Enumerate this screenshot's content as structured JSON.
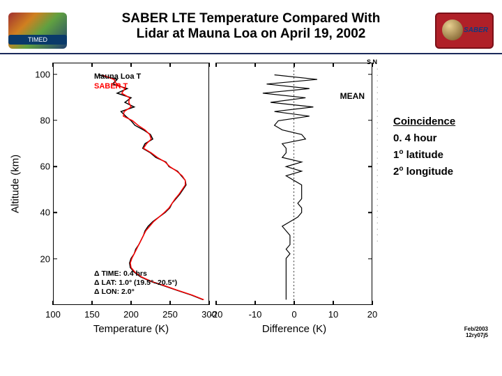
{
  "header": {
    "title_line1": "SABER LTE Temperature Compared With",
    "title_line2": "Lidar at Mauna Loa on April 19, 2002",
    "title_fontsize": 19,
    "title_weight": "bold",
    "underline_color": "#1a2a5a",
    "logo_left_label": "TIMED",
    "logo_right_label": "SABER"
  },
  "side_note": {
    "heading": "Coincidence",
    "lines_html": "0. 4 hour<br>1<sup>o</sup> latitude<br>2<sup>o</sup> longitude"
  },
  "chart": {
    "background_color": "#ffffff",
    "axis_color": "#000000",
    "axis_width": 1.5,
    "font_family": "Arial",
    "y": {
      "label": "Altitude (km)",
      "label_fontsize": 15,
      "lim": [
        0,
        105
      ],
      "ticks": [
        20,
        40,
        60,
        80,
        100
      ],
      "tick_fontsize": 13
    },
    "left_panel": {
      "type": "line",
      "xlabel": "Temperature (K)",
      "xlabel_fontsize": 15,
      "xlim": [
        100,
        300
      ],
      "xticks": [
        100,
        150,
        200,
        250,
        300
      ],
      "legend": {
        "items": [
          {
            "label": "Mauna Loa T",
            "color": "#000000"
          },
          {
            "label": "SABER T",
            "color": "#ff0000"
          }
        ],
        "fontsize": 11
      },
      "delta_text": [
        "Δ TIME:  0.4 hrs",
        "Δ LAT:   1.0° (19.5°–20.5°)",
        "Δ LON:  2.0°"
      ],
      "series": {
        "mauna_loa": {
          "color": "#000000",
          "line_width": 1.5,
          "altitude_km": [
            100,
            98,
            96,
            94,
            92,
            90,
            88,
            86,
            84,
            82,
            80,
            78,
            76,
            74,
            72,
            70,
            68,
            66,
            64,
            62,
            60,
            58,
            56,
            54,
            52,
            50,
            48,
            46,
            44,
            42,
            40,
            38,
            36,
            34,
            32,
            30,
            28,
            26,
            24,
            22,
            20,
            18,
            16,
            14,
            12,
            10,
            8,
            6,
            4,
            2
          ],
          "temperature_k": [
            158,
            182,
            176,
            195,
            182,
            200,
            192,
            204,
            187,
            193,
            200,
            205,
            216,
            225,
            228,
            218,
            215,
            225,
            232,
            245,
            249,
            260,
            265,
            270,
            271,
            267,
            263,
            258,
            253,
            250,
            244,
            236,
            228,
            222,
            218,
            216,
            213,
            210,
            206,
            204,
            200,
            198,
            199,
            204,
            212,
            225,
            243,
            260,
            278,
            293
          ]
        },
        "saber": {
          "color": "#ff0000",
          "line_width": 1.5,
          "altitude_km": [
            100,
            98,
            96,
            94,
            92,
            90,
            88,
            86,
            84,
            82,
            80,
            78,
            76,
            74,
            72,
            70,
            68,
            66,
            64,
            62,
            60,
            58,
            56,
            54,
            52,
            50,
            48,
            46,
            44,
            42,
            40,
            38,
            36,
            34,
            32,
            30,
            28,
            26,
            24,
            22,
            20,
            18,
            16,
            14,
            12,
            10,
            8,
            6,
            4,
            2
          ],
          "temperature_k": [
            162,
            178,
            181,
            192,
            188,
            198,
            197,
            200,
            191,
            190,
            202,
            209,
            218,
            224,
            226,
            220,
            216,
            226,
            234,
            244,
            250,
            259,
            266,
            270,
            270,
            266,
            262,
            257,
            253,
            249,
            243,
            236,
            229,
            224,
            219,
            216,
            213,
            210,
            207,
            204,
            201,
            199,
            200,
            205,
            213,
            226,
            244,
            261,
            279,
            294
          ]
        }
      }
    },
    "right_panel": {
      "type": "line",
      "xlabel": "Difference (K)",
      "xlabel_fontsize": 15,
      "xlim": [
        -20,
        20
      ],
      "xticks": [
        -20,
        -10,
        0,
        10,
        20
      ],
      "legend_label": "MEAN",
      "legend_fontsize": 12,
      "series": {
        "mean_diff": {
          "color": "#000000",
          "line_width": 1.2,
          "altitude_km": [
            100,
            98,
            96,
            94,
            92,
            90,
            88,
            86,
            84,
            82,
            80,
            78,
            76,
            74,
            72,
            70,
            68,
            66,
            64,
            62,
            60,
            58,
            56,
            54,
            52,
            50,
            48,
            46,
            44,
            42,
            40,
            38,
            36,
            34,
            32,
            30,
            28,
            26,
            24,
            22,
            20,
            18,
            16,
            14,
            12,
            10,
            8,
            6,
            4,
            2
          ],
          "difference_k": [
            -5,
            6,
            -7,
            4,
            -8,
            3,
            -6,
            5,
            -5,
            4,
            -4,
            -5,
            -3,
            2,
            3,
            -3,
            -2,
            -2,
            -3,
            2,
            -2,
            2,
            -2,
            0,
            2,
            2,
            2,
            2,
            1,
            2,
            2,
            1,
            -1,
            -3,
            -2,
            -1,
            -1,
            -1,
            -2,
            -1,
            -2,
            -2,
            -2,
            -2,
            -2,
            -2,
            -2,
            -2,
            -2,
            -2
          ]
        }
      }
    },
    "ns_marker": "S    N",
    "footer": [
      "Feb/2003",
      "12ry07j5"
    ]
  }
}
